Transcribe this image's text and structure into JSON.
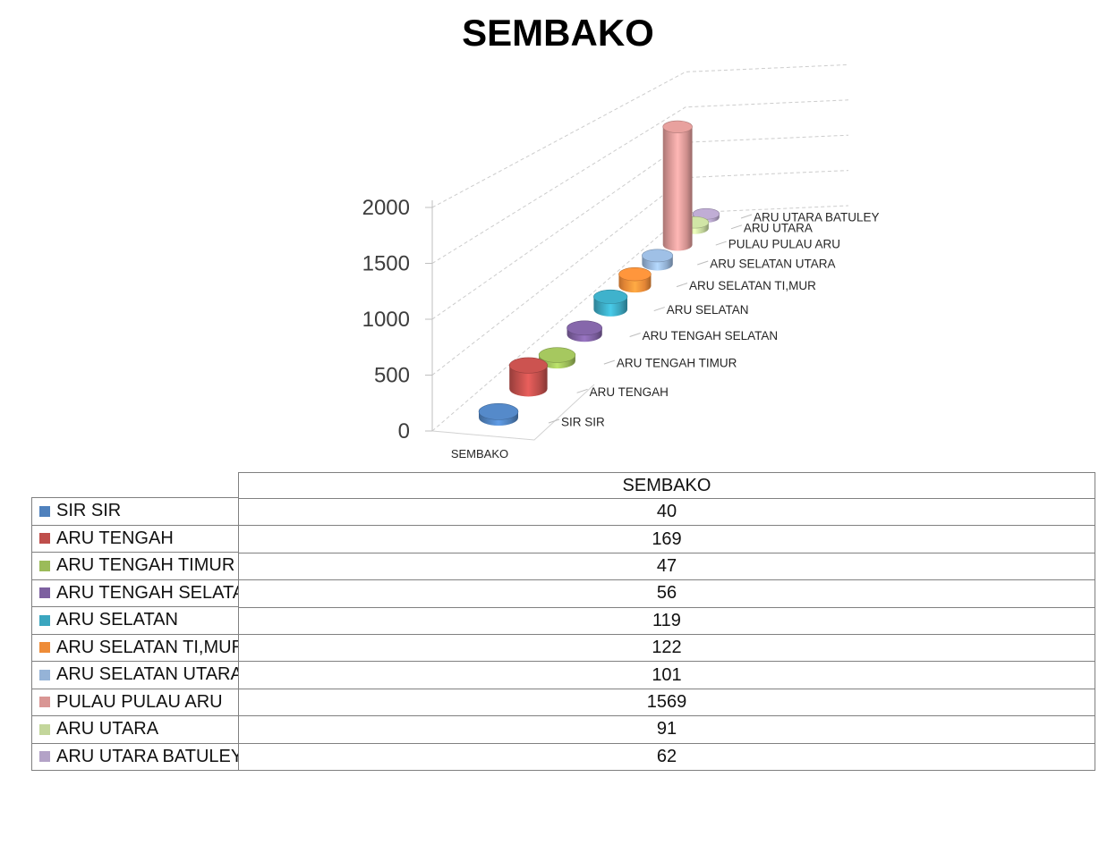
{
  "title": "SEMBAKO",
  "chart_data": {
    "type": "bar",
    "style": "3d-cylinder",
    "title": "SEMBAKO",
    "categories": [
      "SIR SIR",
      "ARU TENGAH",
      "ARU TENGAH TIMUR",
      "ARU TENGAH SELATAN",
      "ARU SELATAN",
      "ARU SELATAN TI,MUR",
      "ARU SELATAN UTARA",
      "PULAU PULAU ARU",
      "ARU UTARA",
      "ARU UTARA BATULEY"
    ],
    "series": [
      {
        "name": "SEMBAKO",
        "values": [
          40,
          169,
          47,
          56,
          119,
          122,
          101,
          1569,
          91,
          62
        ]
      }
    ],
    "colors": [
      "#4f81bd",
      "#bf4e4b",
      "#9bbb59",
      "#7d60a0",
      "#3ba6bf",
      "#ee8c38",
      "#95b3d7",
      "#d99694",
      "#c3d69b",
      "#b3a2c7"
    ],
    "value_axis": {
      "min": 0,
      "max": 2000,
      "step": 500,
      "ticks": [
        0,
        500,
        1000,
        1500,
        2000
      ],
      "gridlines": "dashed"
    },
    "series_axis_label": "SEMBAKO",
    "legend_position": "table-left"
  },
  "table": {
    "header": "SEMBAKO"
  }
}
